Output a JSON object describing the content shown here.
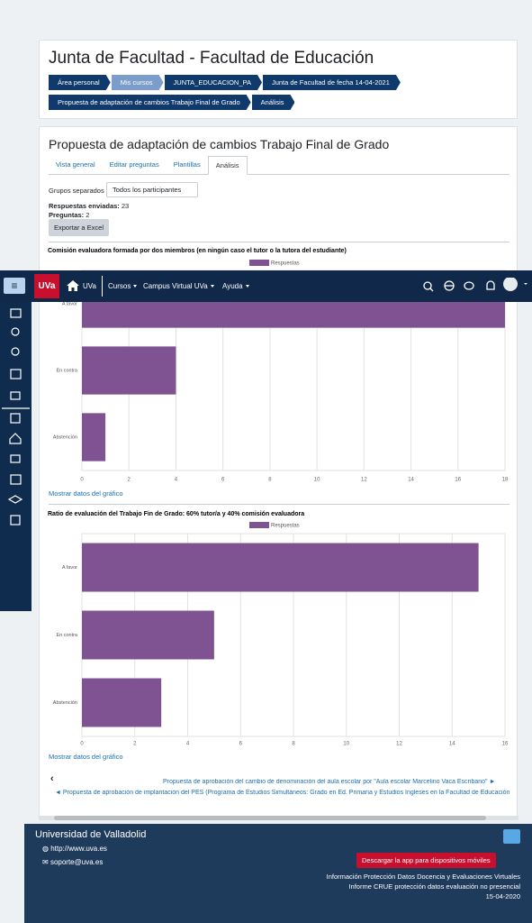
{
  "header": {
    "title": "Junta de Facultad - Facultad de Educación",
    "breadcrumbs": [
      "Área personal",
      "Mis cursos",
      "JUNTA_EDUCACION_PA",
      "Junta de Facultad de fecha 14-04-2021",
      "Propuesta de adaptación de cambios Trabajo Final de Grado",
      "Análisis"
    ]
  },
  "main": {
    "title": "Propuesta de adaptación de cambios Trabajo Final de Grado",
    "tabs": [
      "Vista general",
      "Editar preguntas",
      "Plantillas",
      "Análisis"
    ],
    "group_label": "Grupos separados",
    "group_select": "Todos los participantes",
    "responses_label": "Respuestas enviadas:",
    "responses_value": 23,
    "questions_label": "Preguntas:",
    "questions_value": 2,
    "export_button": "Exportar a Excel"
  },
  "chart_data": [
    {
      "type": "bar",
      "orientation": "horizontal",
      "title": "Comisión evaluadora formada por dos miembros (en ningún caso el tutor o la tutora del estudiante)",
      "categories": [
        "A favor",
        "En contra",
        "Abstención"
      ],
      "series": [
        {
          "name": "Respuestas",
          "color": "#7f5391",
          "values": [
            18,
            4,
            1
          ]
        }
      ],
      "xlim": [
        0,
        18
      ],
      "xticks": [
        0,
        2,
        4,
        6,
        8,
        10,
        12,
        14,
        16,
        18
      ],
      "grid": true,
      "link": "Mostrar datos del gráfico"
    },
    {
      "type": "bar",
      "orientation": "horizontal",
      "title": "Ratio de evaluación del Trabajo Fin de Grado: 60% tutor/a y 40% comisión evaluadora",
      "categories": [
        "A favor",
        "En contra",
        "Abstención"
      ],
      "series": [
        {
          "name": "Respuestas",
          "color": "#7f5391",
          "values": [
            15,
            5,
            3
          ]
        }
      ],
      "xlim": [
        0,
        16
      ],
      "xticks": [
        0,
        2,
        4,
        6,
        8,
        10,
        12,
        14,
        16
      ],
      "grid": true,
      "link": "Mostrar datos del gráfico"
    }
  ],
  "navbar": {
    "logo": "UVa",
    "home": "UVa",
    "menu": [
      "Cursos",
      "Campus Virtual UVa",
      "Ayuda"
    ]
  },
  "nav_links": {
    "next": "Propuesta de aprobación del cambio de denominación del aula escolar por \"Aula escolar Marcelino Vaca Escribano\" ►",
    "prev": "◄ Propuesta de aprobación de implantación del PES (Programa de Estudios Simultáneos: Grado en Ed. Primaria y Estudios Ingleses en la Facultad de Educación"
  },
  "footer": {
    "title": "Universidad de Valladolid",
    "web": "http://www.uva.es",
    "email": "soporte@uva.es",
    "app_button": "Descargar la app para dispositivos móviles",
    "links": [
      "Información Protección Datos Docencia y Evaluaciones Virtuales",
      "Informe CRUE protección datos evaluación no presencial"
    ],
    "date": "15-04-2020"
  }
}
